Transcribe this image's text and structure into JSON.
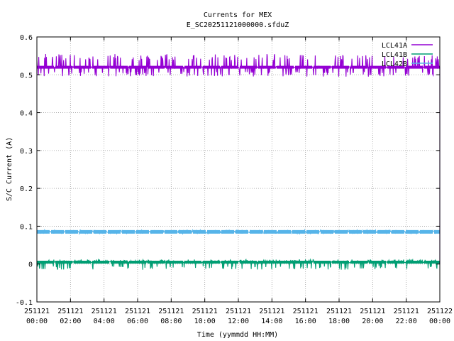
{
  "chart_data": {
    "type": "line",
    "title": "Currents for MEX",
    "subtitle": "E_SC20251121000000.sfduZ",
    "xlabel": "Time (yymmdd HH:MM)",
    "ylabel": "S/C Current (A)",
    "ylim": [
      -0.1,
      0.6
    ],
    "xlim_hours": [
      0,
      24
    ],
    "yticks": [
      "-0.1",
      "0",
      "0.1",
      "0.2",
      "0.3",
      "0.4",
      "0.5",
      "0.6"
    ],
    "xticks": [
      {
        "date": "251121",
        "time": "00:00"
      },
      {
        "date": "251121",
        "time": "02:00"
      },
      {
        "date": "251121",
        "time": "04:00"
      },
      {
        "date": "251121",
        "time": "06:00"
      },
      {
        "date": "251121",
        "time": "08:00"
      },
      {
        "date": "251121",
        "time": "10:00"
      },
      {
        "date": "251121",
        "time": "12:00"
      },
      {
        "date": "251121",
        "time": "14:00"
      },
      {
        "date": "251121",
        "time": "16:00"
      },
      {
        "date": "251121",
        "time": "18:00"
      },
      {
        "date": "251121",
        "time": "20:00"
      },
      {
        "date": "251121",
        "time": "22:00"
      },
      {
        "date": "251122",
        "time": "00:00"
      }
    ],
    "grid": true,
    "legend_position": "top-right",
    "series": [
      {
        "name": "LCL41A",
        "color": "#9400d3",
        "base": 0.52,
        "noise": [
          0.495,
          0.555
        ],
        "end_value": 0.475
      },
      {
        "name": "LCL41B",
        "color": "#009e73",
        "base": 0.005,
        "noise": [
          -0.015,
          0.012
        ]
      },
      {
        "name": "LCL42B",
        "color": "#56b4e9",
        "base": 0.085,
        "noise": [
          0.08,
          0.09
        ]
      }
    ]
  }
}
